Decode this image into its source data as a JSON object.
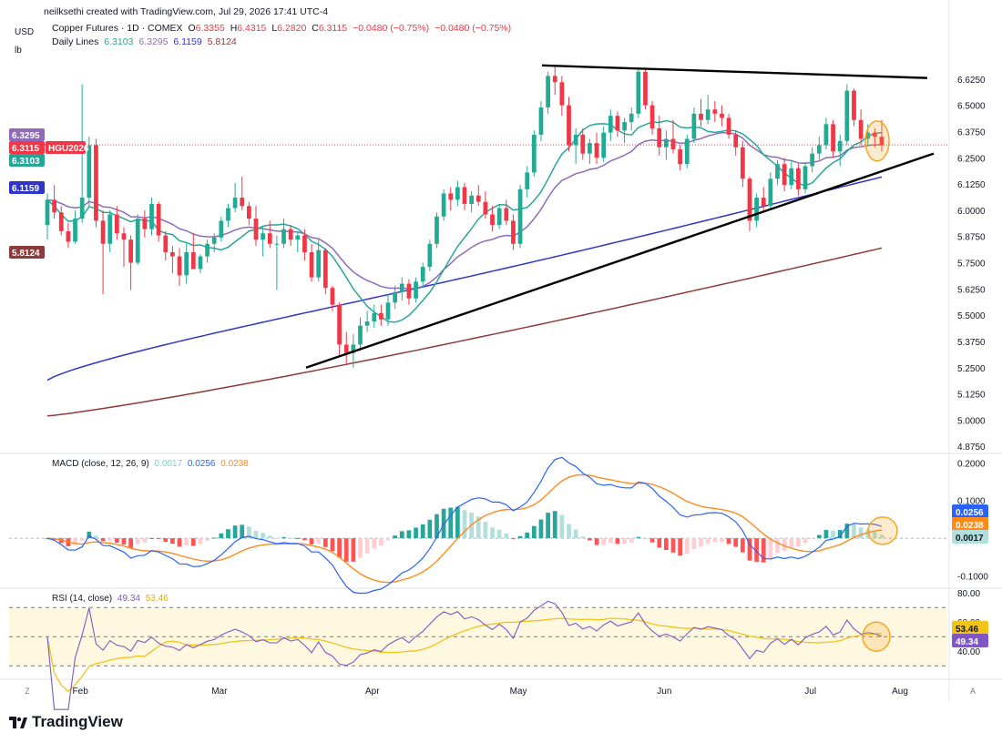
{
  "header": {
    "credit": "neilksethi created with TradingView.com, Jul 29, 2026 17:41 UTC-4",
    "symbol": "Copper Futures · 1D · COMEX",
    "o_label": "O",
    "o_value": "6.3355",
    "h_label": "H",
    "h_value": "6.4315",
    "l_label": "L",
    "l_value": "6.2820",
    "c_label": "C",
    "c_value": "6.3115",
    "change": "−0.0480 (−0.75%)",
    "change2": "−0.0480 (−0.75%)",
    "lines_label": "Daily Lines",
    "lines_values": [
      "6.3103",
      "6.3295",
      "6.1159",
      "5.8124"
    ],
    "currency": "USD",
    "unit": "lb"
  },
  "colors": {
    "up": "#22ab94",
    "down": "#f23645",
    "ma_short": "#26a69a",
    "ma_mid": "#8e6bb8",
    "ma_long": "#2f36c7",
    "ma_200": "#8d3a3a",
    "macd_line": "#2962ff",
    "signal_line": "#ff8a1c",
    "rsi_line": "#7e57c2",
    "rsi_ma": "#f0c419",
    "highlight": "#f5a623"
  },
  "price_labels": {
    "ma_mid": "6.3295",
    "last": "6.3115",
    "ticker": "HGU2026",
    "ma_short": "6.3103",
    "ma_long": "6.1159",
    "ma_200": "5.8124"
  },
  "macd_header": {
    "label": "MACD (close, 12, 26, 9)",
    "hist": "0.0017",
    "macd": "0.0256",
    "signal": "0.0238"
  },
  "rsi_header": {
    "label": "RSI (14, close)",
    "rsi": "49.34",
    "ma": "53.46"
  },
  "macd_labels": {
    "macd": "0.0256",
    "signal": "0.0238",
    "hist": "0.0017"
  },
  "rsi_labels": {
    "ma": "53.46",
    "rsi": "49.34"
  },
  "footer": {
    "brand": "TradingView",
    "tz": "Z",
    "auto": "A"
  },
  "chart_data": {
    "type": "candlestick",
    "title": "Copper Futures · 1D · COMEX",
    "price_axis": {
      "ticks": [
        "6.6250",
        "6.5000",
        "6.3750",
        "6.2500",
        "6.1250",
        "6.0000",
        "5.8750",
        "5.7500",
        "5.6250",
        "5.5000",
        "5.3750",
        "5.2500",
        "5.1250",
        "5.0000",
        "4.8750"
      ],
      "range": [
        4.85,
        6.75
      ]
    },
    "x_labels": [
      "Feb",
      "Mar",
      "Apr",
      "May",
      "Jun",
      "Jul",
      "Aug"
    ],
    "trendlines": [
      {
        "name": "upper",
        "from": [
          "May 13",
          6.69
        ],
        "to": [
          "Aug 5",
          6.63
        ]
      },
      {
        "name": "lower",
        "from": [
          "Mar 20",
          5.25
        ],
        "to": [
          "Aug 5",
          6.26
        ]
      }
    ],
    "candles_ohlc_approx": [
      [
        5.93,
        6.08,
        5.86,
        6.05
      ],
      [
        6.05,
        6.12,
        5.96,
        5.99
      ],
      [
        5.99,
        6.02,
        5.88,
        5.9
      ],
      [
        5.9,
        5.94,
        5.82,
        5.85
      ],
      [
        5.85,
        6.0,
        5.84,
        5.96
      ],
      [
        5.96,
        6.6,
        5.94,
        6.06
      ],
      [
        6.06,
        6.35,
        6.02,
        6.31
      ],
      [
        6.31,
        6.34,
        5.92,
        5.95
      ],
      [
        5.95,
        6.0,
        5.6,
        5.84
      ],
      [
        5.84,
        6.0,
        5.8,
        5.98
      ],
      [
        5.98,
        6.02,
        5.86,
        5.89
      ],
      [
        5.89,
        5.92,
        5.73,
        5.86
      ],
      [
        5.86,
        5.88,
        5.62,
        5.75
      ],
      [
        5.75,
        5.98,
        5.74,
        5.96
      ],
      [
        5.96,
        6.0,
        5.87,
        5.91
      ],
      [
        5.91,
        6.06,
        5.88,
        6.03
      ],
      [
        6.03,
        6.04,
        5.85,
        5.88
      ],
      [
        5.88,
        5.9,
        5.76,
        5.8
      ],
      [
        5.8,
        5.83,
        5.7,
        5.78
      ],
      [
        5.78,
        5.82,
        5.64,
        5.69
      ],
      [
        5.69,
        5.84,
        5.65,
        5.8
      ],
      [
        5.8,
        5.89,
        5.76,
        5.72
      ],
      [
        5.72,
        5.79,
        5.7,
        5.78
      ],
      [
        5.78,
        5.86,
        5.75,
        5.84
      ],
      [
        5.84,
        5.89,
        5.8,
        5.87
      ],
      [
        5.87,
        5.97,
        5.85,
        5.95
      ],
      [
        5.95,
        6.03,
        5.92,
        6.01
      ],
      [
        6.01,
        6.13,
        5.99,
        6.06
      ],
      [
        6.06,
        6.16,
        6.0,
        6.02
      ],
      [
        6.02,
        6.04,
        5.93,
        5.96
      ],
      [
        5.96,
        6.02,
        5.83,
        5.86
      ],
      [
        5.86,
        5.92,
        5.78,
        5.89
      ],
      [
        5.89,
        5.95,
        5.82,
        5.84
      ],
      [
        5.84,
        5.88,
        5.62,
        5.84
      ],
      [
        5.84,
        5.96,
        5.82,
        5.91
      ],
      [
        5.91,
        5.93,
        5.83,
        5.86
      ],
      [
        5.86,
        5.9,
        5.8,
        5.88
      ],
      [
        5.88,
        5.91,
        5.76,
        5.8
      ],
      [
        5.8,
        5.84,
        5.66,
        5.68
      ],
      [
        5.68,
        5.86,
        5.66,
        5.81
      ],
      [
        5.81,
        5.82,
        5.6,
        5.63
      ],
      [
        5.63,
        5.64,
        5.52,
        5.55
      ],
      [
        5.55,
        5.56,
        5.3,
        5.36
      ],
      [
        5.36,
        5.42,
        5.27,
        5.32
      ],
      [
        5.32,
        5.41,
        5.25,
        5.36
      ],
      [
        5.36,
        5.49,
        5.33,
        5.45
      ],
      [
        5.45,
        5.52,
        5.42,
        5.47
      ],
      [
        5.47,
        5.55,
        5.44,
        5.51
      ],
      [
        5.51,
        5.55,
        5.45,
        5.48
      ],
      [
        5.48,
        5.6,
        5.45,
        5.56
      ],
      [
        5.56,
        5.64,
        5.53,
        5.61
      ],
      [
        5.61,
        5.68,
        5.57,
        5.65
      ],
      [
        5.65,
        5.67,
        5.55,
        5.58
      ],
      [
        5.58,
        5.68,
        5.56,
        5.66
      ],
      [
        5.66,
        5.75,
        5.63,
        5.73
      ],
      [
        5.73,
        5.86,
        5.71,
        5.84
      ],
      [
        5.84,
        5.99,
        5.82,
        5.97
      ],
      [
        5.97,
        6.1,
        5.95,
        6.08
      ],
      [
        6.08,
        6.11,
        6.0,
        6.05
      ],
      [
        6.05,
        6.14,
        6.02,
        6.11
      ],
      [
        6.11,
        6.13,
        6.0,
        6.03
      ],
      [
        6.03,
        6.09,
        5.99,
        6.07
      ],
      [
        6.07,
        6.12,
        6.02,
        6.04
      ],
      [
        6.04,
        6.09,
        5.96,
        5.98
      ],
      [
        5.98,
        6.02,
        5.9,
        5.93
      ],
      [
        5.93,
        6.03,
        5.91,
        6.01
      ],
      [
        6.01,
        6.05,
        5.93,
        5.95
      ],
      [
        5.95,
        5.98,
        5.81,
        5.84
      ],
      [
        5.84,
        6.12,
        5.82,
        6.1
      ],
      [
        6.1,
        6.21,
        6.06,
        6.18
      ],
      [
        6.18,
        6.38,
        6.16,
        6.36
      ],
      [
        6.36,
        6.52,
        6.33,
        6.49
      ],
      [
        6.49,
        6.66,
        6.46,
        6.64
      ],
      [
        6.64,
        6.69,
        6.55,
        6.61
      ],
      [
        6.61,
        6.64,
        6.45,
        6.5
      ],
      [
        6.5,
        6.54,
        6.28,
        6.31
      ],
      [
        6.31,
        6.39,
        6.22,
        6.36
      ],
      [
        6.36,
        6.39,
        6.24,
        6.27
      ],
      [
        6.27,
        6.34,
        6.22,
        6.32
      ],
      [
        6.32,
        6.37,
        6.22,
        6.25
      ],
      [
        6.25,
        6.4,
        6.23,
        6.37
      ],
      [
        6.37,
        6.48,
        6.33,
        6.45
      ],
      [
        6.45,
        6.47,
        6.35,
        6.38
      ],
      [
        6.38,
        6.44,
        6.32,
        6.42
      ],
      [
        6.42,
        6.49,
        6.38,
        6.46
      ],
      [
        6.46,
        6.68,
        6.44,
        6.66
      ],
      [
        6.66,
        6.68,
        6.48,
        6.5
      ],
      [
        6.5,
        6.52,
        6.36,
        6.39
      ],
      [
        6.39,
        6.45,
        6.26,
        6.3
      ],
      [
        6.3,
        6.38,
        6.24,
        6.34
      ],
      [
        6.34,
        6.43,
        6.27,
        6.29
      ],
      [
        6.29,
        6.31,
        6.19,
        6.22
      ],
      [
        6.22,
        6.36,
        6.2,
        6.34
      ],
      [
        6.34,
        6.49,
        6.32,
        6.46
      ],
      [
        6.46,
        6.53,
        6.4,
        6.43
      ],
      [
        6.43,
        6.55,
        6.41,
        6.48
      ],
      [
        6.48,
        6.52,
        6.42,
        6.46
      ],
      [
        6.46,
        6.5,
        6.4,
        6.44
      ],
      [
        6.44,
        6.46,
        6.34,
        6.36
      ],
      [
        6.36,
        6.38,
        6.26,
        6.3
      ],
      [
        6.3,
        6.33,
        6.11,
        6.15
      ],
      [
        6.15,
        6.16,
        5.9,
        5.95
      ],
      [
        5.95,
        6.08,
        5.92,
        6.06
      ],
      [
        6.06,
        6.11,
        5.99,
        6.02
      ],
      [
        6.02,
        6.18,
        6.0,
        6.15
      ],
      [
        6.15,
        6.24,
        6.12,
        6.22
      ],
      [
        6.22,
        6.25,
        6.09,
        6.12
      ],
      [
        6.12,
        6.24,
        6.1,
        6.2
      ],
      [
        6.2,
        6.22,
        6.07,
        6.1
      ],
      [
        6.1,
        6.23,
        6.08,
        6.21
      ],
      [
        6.21,
        6.3,
        6.18,
        6.27
      ],
      [
        6.27,
        6.35,
        6.24,
        6.31
      ],
      [
        6.31,
        6.44,
        6.29,
        6.41
      ],
      [
        6.41,
        6.43,
        6.25,
        6.28
      ],
      [
        6.28,
        6.36,
        6.21,
        6.33
      ],
      [
        6.33,
        6.6,
        6.31,
        6.57
      ],
      [
        6.57,
        6.58,
        6.4,
        6.43
      ],
      [
        6.43,
        6.48,
        6.31,
        6.34
      ],
      [
        6.34,
        6.41,
        6.31,
        6.37
      ],
      [
        6.37,
        6.39,
        6.3,
        6.35
      ],
      [
        6.35,
        6.43,
        6.28,
        6.31
      ]
    ],
    "macd_axis": {
      "ticks": [
        "0.2000",
        "0.1000",
        "-0.1000"
      ],
      "range": [
        -0.13,
        0.22
      ]
    },
    "rsi_axis": {
      "ticks": [
        "80.00",
        "60.00",
        "40.00"
      ],
      "range": [
        22,
        82
      ],
      "bands": [
        70,
        50,
        30
      ]
    }
  }
}
